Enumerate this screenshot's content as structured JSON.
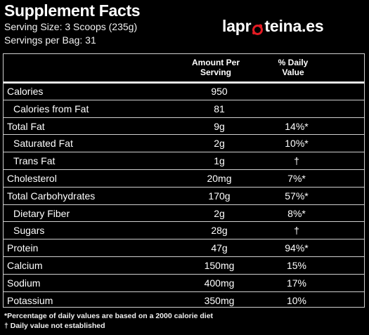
{
  "header": {
    "title": "Supplement Facts",
    "serving_size": "Serving Size: 3 Scoops (235g)",
    "servings_per_bag": "Servings per Bag: 31"
  },
  "logo": {
    "text_before": "lapr",
    "text_after": "teina.es",
    "accent_color": "#e31b23"
  },
  "columns": {
    "amount_line1": "Amount Per",
    "amount_line2": "Serving",
    "daily_line1": "% Daily",
    "daily_line2": "Value"
  },
  "rows": [
    {
      "name": "Calories",
      "amount": "950",
      "dv": ""
    },
    {
      "name": "Calories from Fat",
      "amount": "81",
      "dv": ""
    },
    {
      "name": "Total Fat",
      "amount": "9g",
      "dv": "14%*"
    },
    {
      "name": "Saturated Fat",
      "amount": "2g",
      "dv": "10%*"
    },
    {
      "name": "Trans Fat",
      "amount": "1g",
      "dv": "†"
    },
    {
      "name": "Cholesterol",
      "amount": "20mg",
      "dv": "7%*"
    },
    {
      "name": "Total Carbohydrates",
      "amount": "170g",
      "dv": "57%*"
    },
    {
      "name": "Dietary Fiber",
      "amount": "2g",
      "dv": "8%*"
    },
    {
      "name": "Sugars",
      "amount": "28g",
      "dv": "†"
    },
    {
      "name": "Protein",
      "amount": "47g",
      "dv": "94%*"
    },
    {
      "name": "Calcium",
      "amount": "150mg",
      "dv": "15%"
    },
    {
      "name": "Sodium",
      "amount": "400mg",
      "dv": "17%"
    },
    {
      "name": "Potassium",
      "amount": "350mg",
      "dv": "10%"
    }
  ],
  "footnotes": {
    "percent_note": "*Percentage of daily values are based on a 2000 calorie diet",
    "dagger_note": "† Daily value not established"
  }
}
